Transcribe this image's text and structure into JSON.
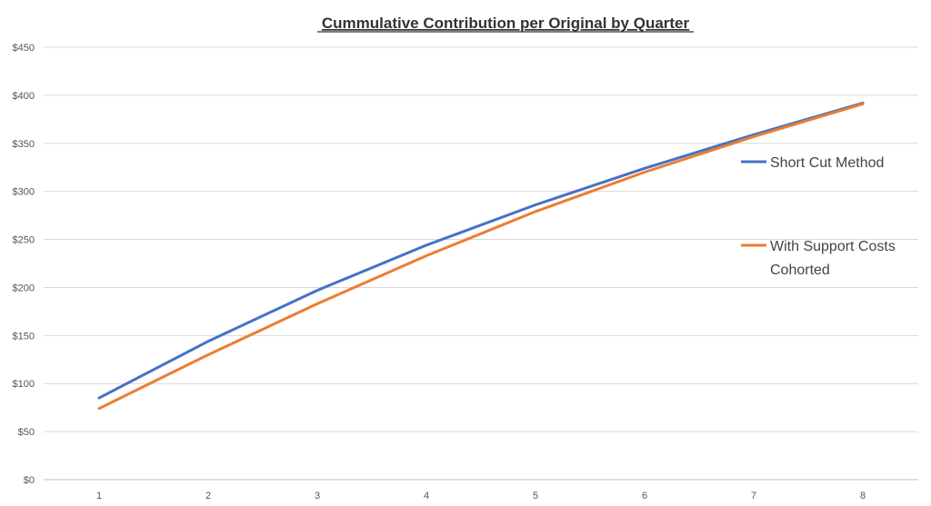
{
  "chart_data": {
    "type": "line",
    "title": "Cummulative Contribution per Original by Quarter",
    "xlabel": "",
    "ylabel": "",
    "x": [
      "1",
      "2",
      "3",
      "4",
      "5",
      "6",
      "7",
      "8"
    ],
    "ylim": [
      0,
      450
    ],
    "y_ticks": [
      "$0",
      "$50",
      "$100",
      "$150",
      "$200",
      "$250",
      "$300",
      "$350",
      "$400",
      "$450"
    ],
    "y_tick_values": [
      0,
      50,
      100,
      150,
      200,
      250,
      300,
      350,
      400,
      450
    ],
    "grid": true,
    "legend_position": "right",
    "series": [
      {
        "name": "Short Cut Method",
        "legend_lines": [
          "Short Cut Method"
        ],
        "color": "#4472C4",
        "values": [
          85,
          144,
          197,
          244,
          286,
          324,
          359,
          392
        ]
      },
      {
        "name": "With Support Costs Cohorted",
        "legend_lines": [
          "With Support Costs",
          "Cohorted"
        ],
        "color": "#ED7D31",
        "values": [
          74,
          130,
          183,
          233,
          279,
          320,
          357,
          391
        ]
      }
    ]
  }
}
